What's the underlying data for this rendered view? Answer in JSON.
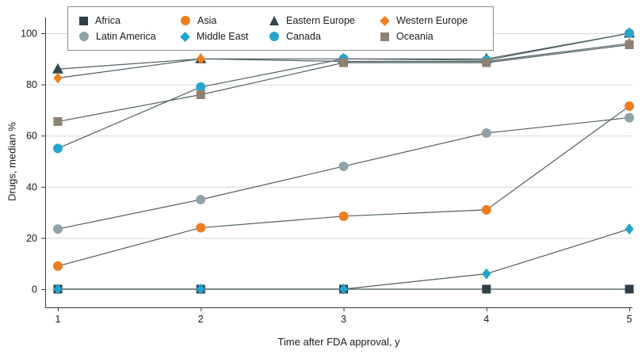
{
  "chart_data": {
    "type": "line",
    "title": "",
    "xlabel": "Time after FDA approval, y",
    "ylabel": "Drugs, median %",
    "x": [
      1,
      2,
      3,
      4,
      5
    ],
    "xticks": [
      1,
      2,
      3,
      4,
      5
    ],
    "yticks": [
      0,
      20,
      40,
      60,
      80,
      100
    ],
    "ylim": [
      0,
      100
    ],
    "grid": "horizontal",
    "legend_position": "top",
    "line_color": "#4f5f64",
    "series": [
      {
        "name": "Africa",
        "marker": "square",
        "color": "#2f3f47",
        "values": [
          0,
          0,
          0,
          0,
          0
        ]
      },
      {
        "name": "Asia",
        "marker": "circle",
        "color": "#ed7d21",
        "values": [
          9,
          24,
          28.5,
          31,
          71.5
        ]
      },
      {
        "name": "Eastern Europe",
        "marker": "triangle",
        "color": "#31464e",
        "values": [
          86,
          90,
          90,
          90,
          100
        ]
      },
      {
        "name": "Western Europe",
        "marker": "diamond",
        "color": "#ef8122",
        "values": [
          82.5,
          90,
          89,
          89,
          96
        ]
      },
      {
        "name": "Latin America",
        "marker": "circle",
        "color": "#8fa3a9",
        "values": [
          23.5,
          35,
          48,
          61,
          67
        ]
      },
      {
        "name": "Middle East",
        "marker": "diamond",
        "color": "#1fa3cd",
        "values": [
          0,
          0,
          0,
          6,
          23.5
        ]
      },
      {
        "name": "Canada",
        "marker": "circle",
        "color": "#27a5cb",
        "values": [
          55,
          79,
          90,
          89.5,
          100
        ]
      },
      {
        "name": "Oceania",
        "marker": "square",
        "color": "#8d8172",
        "values": [
          65.5,
          76,
          88.5,
          88.5,
          95.5
        ]
      }
    ],
    "legend_rows": [
      [
        "Africa",
        "Asia",
        "Eastern Europe",
        "Western Europe"
      ],
      [
        "Latin America",
        "Middle East",
        "Canada",
        "Oceania"
      ]
    ]
  }
}
